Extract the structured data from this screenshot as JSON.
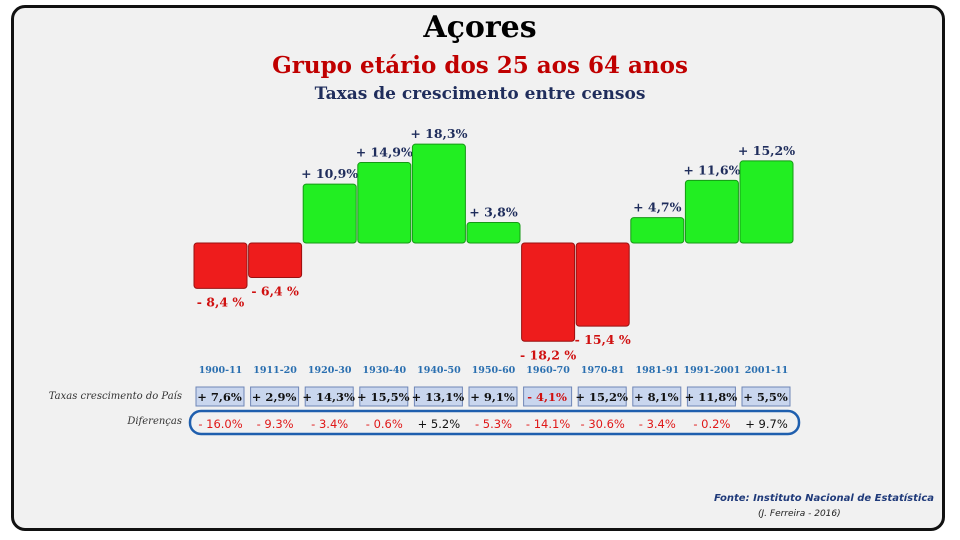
{
  "title": "Açores",
  "subtitle": "Grupo etário dos 25 aos 64 anos",
  "subtitle2": "Taxas de crescimento entre censos",
  "row_labels": {
    "country": "Taxas crescimento do País",
    "diff": "Diferenças"
  },
  "source": "Fonte: Instituto Nacional de Estatística",
  "author": "(J. Ferreira - 2016)",
  "colors": {
    "positive": "#22ee22",
    "negative": "#ee1c1c",
    "positive_label": "#1f2d5c",
    "negative_label": "#d01010"
  },
  "chart_data": {
    "type": "bar",
    "categories": [
      "1900-11",
      "1911-20",
      "1920-30",
      "1930-40",
      "1940-50",
      "1950-60",
      "1960-70",
      "1970-81",
      "1981-91",
      "1991-2001",
      "2001-11"
    ],
    "values": [
      -8.4,
      -6.4,
      10.9,
      14.9,
      18.3,
      3.8,
      -18.2,
      -15.4,
      4.7,
      11.6,
      15.2
    ],
    "value_labels": [
      "- 8,4 %",
      "- 6,4 %",
      "+ 10,9%",
      "+ 14,9%",
      "+ 18,3%",
      "+ 3,8%",
      "- 18,2 %",
      "- 15,4 %",
      "+ 4,7%",
      "+ 11,6%",
      "+ 15,2%"
    ],
    "country_rates": [
      "+ 7,6%",
      "+ 2,9%",
      "+ 14,3%",
      "+ 15,5%",
      "+ 13,1%",
      "+ 9,1%",
      "- 4,1%",
      "+ 15,2%",
      "+ 8,1%",
      "+ 11,8%",
      "+ 5,5%"
    ],
    "differences": [
      "- 16.0%",
      "- 9.3%",
      "- 3.4%",
      "- 0.6%",
      "+ 5.2%",
      "- 5.3%",
      "- 14.1%",
      "- 30.6%",
      "- 3.4%",
      "- 0.2%",
      "+ 9.7%"
    ]
  }
}
